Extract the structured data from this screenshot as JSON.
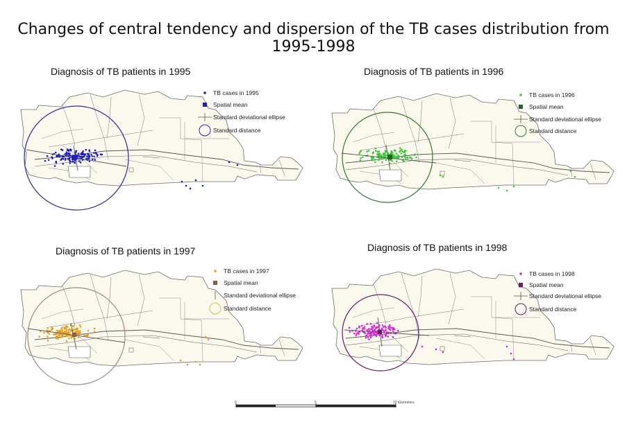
{
  "title": "Changes of central tendency and dispersion of the TB cases distribution from 1995-1998",
  "panels": [
    {
      "title": "Diagnosis of TB patients in 1995",
      "color": "#1c1cc8",
      "ellipse_color": "#555555",
      "circle_color": "#2a2a9c",
      "legend": [
        "TB cases in 1995",
        "Spatial mean",
        "Standard deviational ellipse",
        "Standard distance"
      ]
    },
    {
      "title": "Diagnosis of TB patients in 1996",
      "color": "#33cc33",
      "ellipse_color": "#555555",
      "circle_color": "#2f7a2f",
      "legend": [
        "TB cases in 1996",
        "Spatial mean",
        "Standard deviational ellipse",
        "Standard distance"
      ]
    },
    {
      "title": "Diagnosis of TB patients in 1997",
      "color": "#e8a020",
      "ellipse_color": "#555555",
      "circle_color": "#a08878",
      "legend_circle_color": "#c8c840",
      "legend_mean_color": "#8a5a4a",
      "legend": [
        "TB cases in 1997",
        "Spatial mean",
        "Standard deviational ellipse",
        "Standard distance"
      ]
    },
    {
      "title": "Diagnosis of TB patients in 1998",
      "color": "#e020e0",
      "ellipse_color": "#555555",
      "circle_color": "#6a1a6a",
      "legend_mean_color": "#6a1a6a",
      "legend": [
        "TB cases in 1998",
        "Spatial mean",
        "Standard deviational ellipse",
        "Standard distance"
      ]
    }
  ],
  "scale_bar": {
    "labels": [
      "0",
      "5",
      "10 Kilometers"
    ]
  }
}
